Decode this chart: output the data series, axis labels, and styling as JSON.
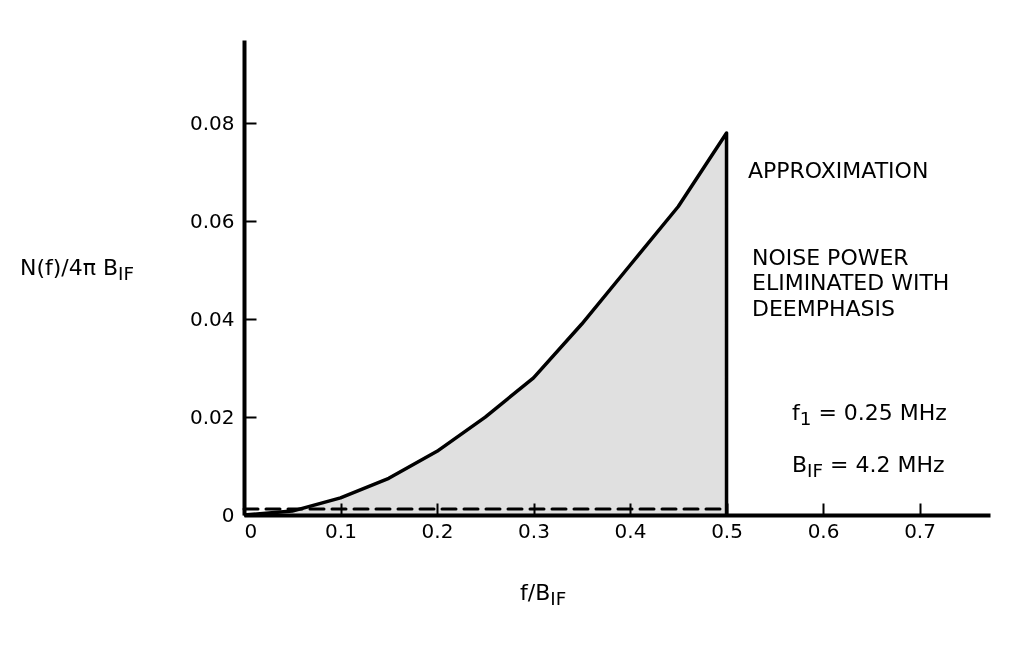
{
  "chart_data": {
    "type": "line",
    "xlabel": "f/B$_{IF}$",
    "ylabel": "N(f)/4π B$_{IF}$",
    "annotations": [
      "APPROXIMATION",
      "NOISE POWER ELIMINATED WITH DEEMPHASIS",
      "f$_{1}$ = 0.25 MHz",
      "B$_{IF}$ = 4.2 MHz"
    ],
    "series": [
      {
        "type": "area",
        "color": "#000000",
        "x": [
          0,
          0.05,
          0.1,
          0.15,
          0.2,
          0.25,
          0.3,
          0.35,
          0.4,
          0.45,
          0.5,
          0.5
        ],
        "values": [
          0,
          0.0008,
          0.0035,
          0.0075,
          0.013,
          0.02,
          0.028,
          0.039,
          0.051,
          0.063,
          0.078,
          0
        ]
      },
      {
        "type": "line",
        "color": "#000000",
        "line_style": "dashed",
        "x": [
          0,
          0.5
        ],
        "values": [
          0.0012,
          0.0012
        ]
      }
    ],
    "xlim": [
      0,
      0.773
    ],
    "ylim": [
      0,
      0.097
    ],
    "xticks": [
      0,
      0.1,
      0.2,
      0.3,
      0.4,
      0.5,
      0.6,
      0.7
    ],
    "yticks": [
      0,
      0.02,
      0.04,
      0.06,
      0.08
    ],
    "grid": false,
    "marker": "none"
  }
}
